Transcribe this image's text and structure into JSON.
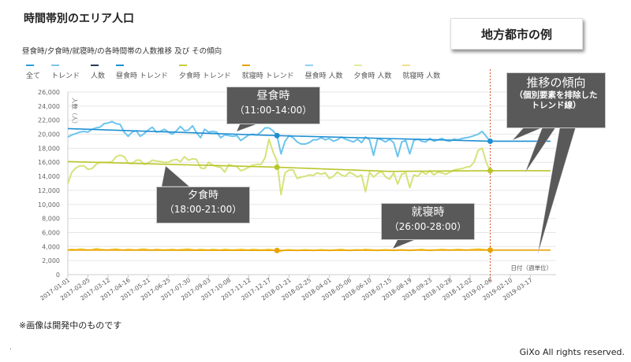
{
  "title": "時間帯別のエリア人口",
  "subtitle": "昼食時/夕食時/就寝時/の各時間帯の人数推移 及び その傾向",
  "example_label": "地方都市の例",
  "legend": [
    {
      "label": "全て",
      "color": "#2a9fd6"
    },
    {
      "label": "トレンド",
      "color": "#7fc6ea"
    },
    {
      "label": "人数",
      "color": "#2b3a55"
    },
    {
      "label": "昼食時 トレンド",
      "color": "#1f8fd2"
    },
    {
      "label": "夕食時 トレンド",
      "color": "#c3cf3a"
    },
    {
      "label": "就寝時 トレンド",
      "color": "#e8a300"
    },
    {
      "label": "昼食時 人数",
      "color": "#8fd0f0"
    },
    {
      "label": "夕食時 人数",
      "color": "#e3ea9a"
    },
    {
      "label": "就寝時 人数",
      "color": "#f3de8a"
    }
  ],
  "callouts": {
    "lunch": {
      "title": "昼食時",
      "time": "（11:00-14:00）"
    },
    "dinner": {
      "title": "夕食時",
      "time": "（18:00-21:00）"
    },
    "bedtime": {
      "title": "就寝時",
      "time": "（26:00-28:00）"
    },
    "trend": {
      "title": "推移の傾向",
      "line1": "（個別要素を排除した",
      "line2": "トレンド線）"
    }
  },
  "note": "※画像は開発中のものです",
  "copyright": "GiXo All rights reserved.",
  "footer_mark": ".",
  "chart_data": {
    "type": "line",
    "xlabel": "日付（週単位）",
    "ylabel": "人数（人）",
    "ylim": [
      0,
      26000
    ],
    "yticks": [
      "0",
      "2,000",
      "4,000",
      "6,000",
      "8,000",
      "10,000",
      "12,000",
      "14,000",
      "16,000",
      "18,000",
      "20,000",
      "22,000",
      "24,000",
      "26,000"
    ],
    "x_start": "2017-01-01",
    "x_interval": "weekly",
    "xticks": [
      "2017-01-01",
      "2017-02-05",
      "2017-03-12",
      "2017-04-16",
      "2017-05-21",
      "2017-06-25",
      "2017-07-30",
      "2017-09-03",
      "2017-10-08",
      "2017-11-12",
      "2017-12-17",
      "2018-01-21",
      "2018-02-25",
      "2018-04-01",
      "2018-05-06",
      "2018-06-10",
      "2018-07-15",
      "2018-08-19",
      "2018-09-23",
      "2018-10-28",
      "2018-12-02",
      "2019-01-06",
      "2019-02-10",
      "2019-03-17"
    ],
    "grid": true,
    "marker_line_date": "2019-01-06",
    "series": [
      {
        "name": "昼食時 人数",
        "color": "#6cc4ee",
        "values": [
          19600,
          19900,
          20100,
          20300,
          20400,
          20300,
          20700,
          20900,
          21000,
          21500,
          21600,
          21800,
          21500,
          21400,
          20300,
          19700,
          20300,
          20500,
          19700,
          20100,
          20600,
          21000,
          20300,
          20400,
          20700,
          20300,
          20000,
          20500,
          21100,
          20500,
          20600,
          21200,
          20200,
          19500,
          20700,
          20300,
          20400,
          20300,
          19500,
          19900,
          19800,
          19700,
          19800,
          19100,
          19500,
          19900,
          20000,
          19900,
          20300,
          20900,
          20900,
          20500,
          19800,
          17200,
          19000,
          19800,
          19500,
          18900,
          18600,
          18600,
          18800,
          19200,
          19200,
          19500,
          19200,
          19400,
          19000,
          19200,
          19600,
          19300,
          19100,
          18900,
          19300,
          18800,
          19600,
          19200,
          17000,
          19400,
          19200,
          18900,
          19300,
          18800,
          16800,
          18900,
          19100,
          17200,
          19100,
          19300,
          19000,
          18900,
          19400,
          19000,
          19200,
          19400,
          19100,
          19000,
          19300,
          19200,
          19400,
          19500,
          19600,
          19800,
          20000,
          20400,
          19700,
          19000
        ]
      },
      {
        "name": "夕食時 人数",
        "color": "#d6e27a",
        "values": [
          13000,
          14600,
          15200,
          15500,
          15500,
          15000,
          15100,
          15700,
          16000,
          16000,
          16000,
          16100,
          16800,
          17000,
          16800,
          15900,
          15800,
          16300,
          16300,
          15700,
          15900,
          16300,
          16200,
          16100,
          16000,
          16000,
          16300,
          16400,
          16100,
          16800,
          16300,
          16500,
          16400,
          15200,
          15100,
          16000,
          15600,
          15400,
          15300,
          14600,
          15700,
          15500,
          15400,
          14800,
          15000,
          15300,
          15600,
          15700,
          15700,
          16600,
          19300,
          17500,
          16200,
          11400,
          14500,
          14900,
          14900,
          13700,
          13900,
          14000,
          14200,
          14100,
          14500,
          14300,
          14500,
          13700,
          14000,
          14600,
          14200,
          14000,
          14600,
          14300,
          13900,
          14200,
          11800,
          14600,
          13900,
          14400,
          14700,
          13900,
          13600,
          14500,
          12900,
          14300,
          14500,
          12400,
          14200,
          14000,
          14700,
          14300,
          14800,
          14200,
          14600,
          14500,
          14300,
          14600,
          14900,
          15000,
          15100,
          15300,
          15400,
          16000,
          17700,
          18000,
          16000,
          14800
        ]
      },
      {
        "name": "就寝時 人数",
        "color": "#f2cf4a",
        "values": [
          3500,
          3600,
          3550,
          3650,
          3600,
          3500,
          3550,
          3700,
          3600,
          3550,
          3500,
          3600,
          3650,
          3550,
          3500,
          3600,
          3550,
          3500,
          3600,
          3650,
          3550,
          3500,
          3600,
          3550,
          3500,
          3550,
          3600,
          3500,
          3550,
          3600,
          3650,
          3550,
          3500,
          3600,
          3550,
          3500,
          3600,
          3550,
          3500,
          3600,
          3550,
          3500,
          3550,
          3600,
          3550,
          3500,
          3600,
          3550,
          3500,
          3550,
          3600,
          3500,
          3300,
          3350,
          3500,
          3550,
          3500,
          3450,
          3500,
          3550,
          3500,
          3450,
          3500,
          3550,
          3500,
          3450,
          3500,
          3550,
          3600,
          3500,
          3450,
          3500,
          3550,
          3500,
          3600,
          3550,
          3500,
          3450,
          3500,
          3550,
          3500,
          3450,
          3500,
          3550,
          3500,
          3450,
          3500,
          3550,
          3600,
          3500,
          3450,
          3500,
          3550,
          3600,
          3550,
          3500,
          3550,
          3600,
          3550,
          3500,
          3550,
          3600,
          3650,
          3600,
          3550,
          3500
        ]
      },
      {
        "name": "昼食時 トレンド",
        "color": "#1f8fd2",
        "trend": [
          [
            0,
            20800
          ],
          [
            52,
            19800
          ],
          [
            105,
            19000
          ],
          [
            120,
            19000
          ]
        ],
        "markers": [
          52,
          105
        ]
      },
      {
        "name": "夕食時 トレンド",
        "color": "#b9c62a",
        "trend": [
          [
            0,
            16100
          ],
          [
            52,
            15300
          ],
          [
            80,
            14700
          ],
          [
            105,
            14800
          ],
          [
            120,
            14800
          ]
        ],
        "markers": [
          52,
          105
        ]
      },
      {
        "name": "就寝時 トレンド",
        "color": "#e8a300",
        "trend": [
          [
            0,
            3500
          ],
          [
            52,
            3450
          ],
          [
            105,
            3500
          ],
          [
            120,
            3500
          ]
        ],
        "markers": [
          52,
          105
        ]
      }
    ]
  }
}
